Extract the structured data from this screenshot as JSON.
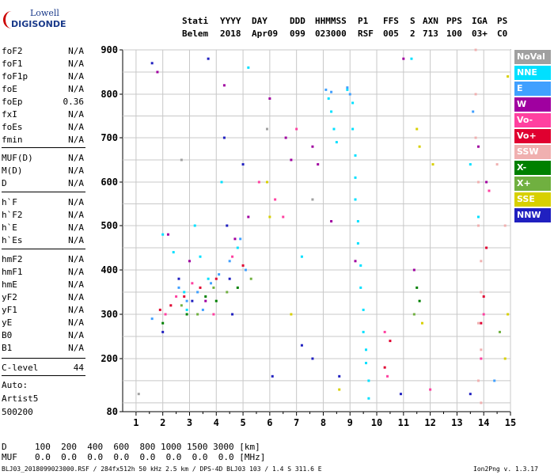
{
  "logo": {
    "top": "Lowell",
    "bottom": "DIGISONDE"
  },
  "header": {
    "labels": [
      "Stati",
      "YYYY",
      "DAY",
      "DDD",
      "HHMMSS",
      "P1",
      "FFS",
      "S",
      "AXN",
      "PPS",
      "IGA",
      "PS"
    ],
    "values": [
      "Belem",
      "2018",
      "Apr09",
      "099",
      "023000",
      "RSF",
      "005",
      "2",
      "713",
      "100",
      "03+",
      "C0"
    ]
  },
  "params": [
    {
      "k": "foF2",
      "v": "N/A"
    },
    {
      "k": "foF1",
      "v": "N/A"
    },
    {
      "k": "foF1p",
      "v": "N/A"
    },
    {
      "k": "foE",
      "v": "N/A"
    },
    {
      "k": "foEp",
      "v": "0.36"
    },
    {
      "k": "fxI",
      "v": "N/A"
    },
    {
      "k": "foEs",
      "v": "N/A"
    },
    {
      "k": "fmin",
      "v": "N/A"
    },
    {
      "k": "MUF(D)",
      "v": "N/A"
    },
    {
      "k": "M(D)",
      "v": "N/A"
    },
    {
      "k": "D",
      "v": "N/A"
    },
    {
      "k": "h`F",
      "v": "N/A"
    },
    {
      "k": "h`F2",
      "v": "N/A"
    },
    {
      "k": "h`E",
      "v": "N/A"
    },
    {
      "k": "h`Es",
      "v": "N/A"
    },
    {
      "k": "hmF2",
      "v": "N/A"
    },
    {
      "k": "hmF1",
      "v": "N/A"
    },
    {
      "k": "hmE",
      "v": "N/A"
    },
    {
      "k": "yF2",
      "v": "N/A"
    },
    {
      "k": "yF1",
      "v": "N/A"
    },
    {
      "k": "yE",
      "v": "N/A"
    },
    {
      "k": "B0",
      "v": "N/A"
    },
    {
      "k": "B1",
      "v": "N/A"
    },
    {
      "k": "C-level",
      "v": "44"
    }
  ],
  "autoscale": {
    "line1": "Auto:",
    "line2": "Artist5",
    "line3": "500200"
  },
  "muf_table": {
    "d_label": "D",
    "d_values": "100  200  400  600  800 1000 1500 3000 [km]",
    "muf_label": "MUF",
    "muf_values": "0.0  0.0  0.0  0.0  0.0  0.0  0.0  0.0 [MHz]"
  },
  "footer": {
    "left": "BLJ03_2018099023000.RSF / 284fx512h 50 kHz 2.5 km / DPS-4D BLJ03 103 / 1.4 S 311.6 E",
    "right": "Ion2Png v. 1.3.17"
  },
  "legend": [
    {
      "label": "NoVal",
      "color": "#a0a0a0"
    },
    {
      "label": "NNE",
      "color": "#00e0ff"
    },
    {
      "label": "E",
      "color": "#40a0ff"
    },
    {
      "label": "W",
      "color": "#a000a0"
    },
    {
      "label": "Vo-",
      "color": "#ff40a0"
    },
    {
      "label": "Vo+",
      "color": "#e00030"
    },
    {
      "label": "SSW",
      "color": "#f0b0b0"
    },
    {
      "label": "X-",
      "color": "#008000"
    },
    {
      "label": "X+",
      "color": "#70b040"
    },
    {
      "label": "SSE",
      "color": "#d8d000"
    },
    {
      "label": "NNW",
      "color": "#2020c0"
    }
  ],
  "chart_data": {
    "type": "scatter",
    "title": "",
    "xlabel": "",
    "ylabel": "",
    "xlim": [
      0.5,
      15
    ],
    "ylim": [
      80,
      900
    ],
    "x_ticks": [
      1,
      2,
      3,
      4,
      5,
      6,
      7,
      8,
      9,
      10,
      11,
      12,
      13,
      14,
      15
    ],
    "y_ticks": [
      80,
      200,
      300,
      400,
      500,
      600,
      700,
      800,
      900
    ],
    "grid": true,
    "series": [
      {
        "name": "NoVal",
        "points": [
          [
            1.1,
            120
          ],
          [
            2.7,
            650
          ],
          [
            5.9,
            720
          ],
          [
            7.6,
            560
          ]
        ]
      },
      {
        "name": "NNE",
        "points": [
          [
            2.0,
            480
          ],
          [
            2.4,
            440
          ],
          [
            2.8,
            350
          ],
          [
            2.9,
            310
          ],
          [
            3.2,
            500
          ],
          [
            3.4,
            430
          ],
          [
            3.7,
            380
          ],
          [
            4.2,
            600
          ],
          [
            4.8,
            450
          ],
          [
            5.2,
            860
          ],
          [
            7.2,
            430
          ],
          [
            8.2,
            790
          ],
          [
            8.3,
            760
          ],
          [
            8.4,
            720
          ],
          [
            8.5,
            690
          ],
          [
            8.9,
            810
          ],
          [
            9.1,
            780
          ],
          [
            9.1,
            720
          ],
          [
            9.2,
            660
          ],
          [
            9.2,
            610
          ],
          [
            9.2,
            560
          ],
          [
            9.3,
            510
          ],
          [
            9.3,
            460
          ],
          [
            9.4,
            410
          ],
          [
            9.4,
            360
          ],
          [
            9.5,
            310
          ],
          [
            9.5,
            260
          ],
          [
            9.6,
            220
          ],
          [
            9.6,
            190
          ],
          [
            9.7,
            150
          ],
          [
            9.7,
            110
          ],
          [
            11.3,
            880
          ],
          [
            13.5,
            640
          ],
          [
            13.8,
            520
          ]
        ]
      },
      {
        "name": "E",
        "points": [
          [
            1.6,
            290
          ],
          [
            2.6,
            360
          ],
          [
            2.9,
            330
          ],
          [
            3.3,
            350
          ],
          [
            3.5,
            310
          ],
          [
            3.8,
            370
          ],
          [
            4.1,
            390
          ],
          [
            4.5,
            420
          ],
          [
            4.9,
            470
          ],
          [
            5.1,
            400
          ],
          [
            8.1,
            810
          ],
          [
            8.3,
            805
          ],
          [
            8.9,
            815
          ],
          [
            9.0,
            800
          ],
          [
            13.6,
            760
          ],
          [
            14.4,
            150
          ]
        ]
      },
      {
        "name": "W",
        "points": [
          [
            1.8,
            850
          ],
          [
            2.2,
            480
          ],
          [
            3.0,
            420
          ],
          [
            3.6,
            330
          ],
          [
            4.3,
            820
          ],
          [
            4.7,
            470
          ],
          [
            5.2,
            520
          ],
          [
            6.0,
            790
          ],
          [
            6.6,
            700
          ],
          [
            6.8,
            650
          ],
          [
            7.6,
            680
          ],
          [
            7.8,
            640
          ],
          [
            8.3,
            510
          ],
          [
            9.2,
            420
          ],
          [
            11.0,
            880
          ],
          [
            11.4,
            400
          ],
          [
            13.8,
            680
          ],
          [
            14.1,
            600
          ]
        ]
      },
      {
        "name": "Vo-",
        "points": [
          [
            2.1,
            300
          ],
          [
            2.5,
            340
          ],
          [
            3.1,
            370
          ],
          [
            3.9,
            300
          ],
          [
            4.6,
            430
          ],
          [
            5.6,
            600
          ],
          [
            6.2,
            560
          ],
          [
            6.5,
            520
          ],
          [
            7.0,
            720
          ],
          [
            10.4,
            160
          ],
          [
            10.3,
            260
          ],
          [
            12.0,
            130
          ],
          [
            13.9,
            200
          ],
          [
            14.0,
            300
          ],
          [
            14.2,
            580
          ]
        ]
      },
      {
        "name": "Vo+",
        "points": [
          [
            1.9,
            310
          ],
          [
            2.3,
            320
          ],
          [
            2.8,
            340
          ],
          [
            3.4,
            360
          ],
          [
            4.0,
            380
          ],
          [
            5.0,
            410
          ],
          [
            10.3,
            180
          ],
          [
            10.5,
            240
          ],
          [
            13.9,
            280
          ],
          [
            14.0,
            340
          ],
          [
            14.1,
            450
          ]
        ]
      },
      {
        "name": "SSW",
        "points": [
          [
            13.7,
            900
          ],
          [
            13.7,
            800
          ],
          [
            13.7,
            700
          ],
          [
            13.8,
            600
          ],
          [
            13.8,
            500
          ],
          [
            13.9,
            420
          ],
          [
            13.9,
            350
          ],
          [
            13.8,
            280
          ],
          [
            13.9,
            220
          ],
          [
            13.8,
            150
          ],
          [
            13.9,
            100
          ],
          [
            14.5,
            640
          ],
          [
            14.8,
            500
          ]
        ]
      },
      {
        "name": "X-",
        "points": [
          [
            2.0,
            280
          ],
          [
            2.9,
            300
          ],
          [
            3.6,
            340
          ],
          [
            4.0,
            330
          ],
          [
            4.8,
            360
          ],
          [
            11.5,
            360
          ],
          [
            11.6,
            330
          ]
        ]
      },
      {
        "name": "X+",
        "points": [
          [
            2.7,
            320
          ],
          [
            3.3,
            300
          ],
          [
            3.9,
            360
          ],
          [
            4.4,
            350
          ],
          [
            5.3,
            380
          ],
          [
            11.4,
            300
          ],
          [
            14.6,
            260
          ]
        ]
      },
      {
        "name": "SSE",
        "points": [
          [
            5.9,
            600
          ],
          [
            6.0,
            520
          ],
          [
            6.8,
            300
          ],
          [
            8.6,
            130
          ],
          [
            11.5,
            720
          ],
          [
            11.6,
            680
          ],
          [
            11.7,
            280
          ],
          [
            12.1,
            640
          ],
          [
            14.9,
            840
          ],
          [
            14.9,
            300
          ],
          [
            14.8,
            200
          ]
        ]
      },
      {
        "name": "NNW",
        "points": [
          [
            1.6,
            870
          ],
          [
            2.0,
            260
          ],
          [
            2.6,
            380
          ],
          [
            3.1,
            330
          ],
          [
            3.7,
            880
          ],
          [
            4.3,
            700
          ],
          [
            4.4,
            500
          ],
          [
            4.5,
            380
          ],
          [
            4.6,
            300
          ],
          [
            5.0,
            640
          ],
          [
            6.1,
            160
          ],
          [
            7.2,
            230
          ],
          [
            7.6,
            200
          ],
          [
            8.6,
            160
          ],
          [
            10.9,
            120
          ],
          [
            13.5,
            120
          ]
        ]
      }
    ]
  }
}
